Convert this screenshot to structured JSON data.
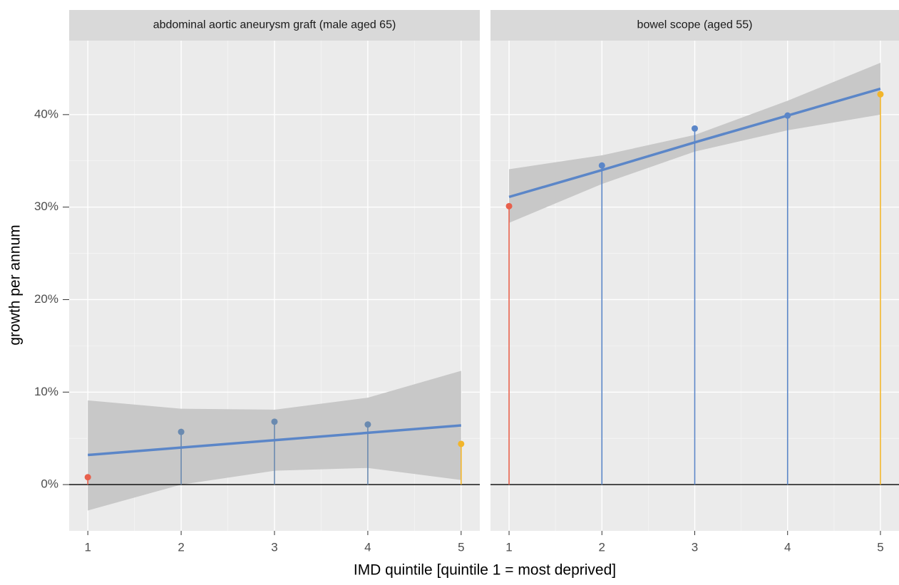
{
  "chart_data": {
    "type": "lollipop",
    "xlabel": "IMD quintile [quintile 1 = most deprived]",
    "ylabel": "growth per annum",
    "xlim": [
      0.8,
      5.2
    ],
    "xticks": [
      1,
      2,
      3,
      4,
      5
    ],
    "ylim": [
      -5,
      48
    ],
    "yticks": [
      {
        "value": 0,
        "label": "0%"
      },
      {
        "value": 10,
        "label": "10%"
      },
      {
        "value": 20,
        "label": "20%"
      },
      {
        "value": 30,
        "label": "30%"
      },
      {
        "value": 40,
        "label": "40%"
      }
    ],
    "grid": true,
    "reference_line": 0,
    "panels": [
      {
        "title": "abdominal aortic aneurysm graft (male aged 65)",
        "x": [
          1,
          2,
          3,
          4,
          5
        ],
        "values": [
          0.8,
          5.7,
          6.8,
          6.5,
          4.4
        ],
        "colors": [
          "#e8604c",
          "#6a8ab0",
          "#6a8ab0",
          "#6a8ab0",
          "#f2b52a"
        ],
        "fit": {
          "color": "#5b86c8",
          "values": [
            3.2,
            4.0,
            4.8,
            5.6,
            6.4
          ]
        },
        "band": {
          "color": "#c8c8c8",
          "lower": [
            -2.8,
            0.0,
            1.5,
            1.8,
            0.5
          ],
          "upper": [
            9.1,
            8.2,
            8.1,
            9.4,
            12.3
          ]
        }
      },
      {
        "title": "bowel scope (aged 55)",
        "x": [
          1,
          2,
          3,
          4,
          5
        ],
        "values": [
          30.1,
          34.5,
          38.5,
          39.9,
          42.2
        ],
        "colors": [
          "#e8604c",
          "#5b86c8",
          "#5b86c8",
          "#5b86c8",
          "#f2b52a"
        ],
        "fit": {
          "color": "#5b86c8",
          "values": [
            31.1,
            34.0,
            37.0,
            39.9,
            42.8
          ]
        },
        "band": {
          "color": "#c8c8c8",
          "lower": [
            28.3,
            32.5,
            36.0,
            38.3,
            40.0
          ],
          "upper": [
            34.1,
            35.6,
            37.8,
            41.5,
            45.6
          ]
        }
      }
    ]
  }
}
